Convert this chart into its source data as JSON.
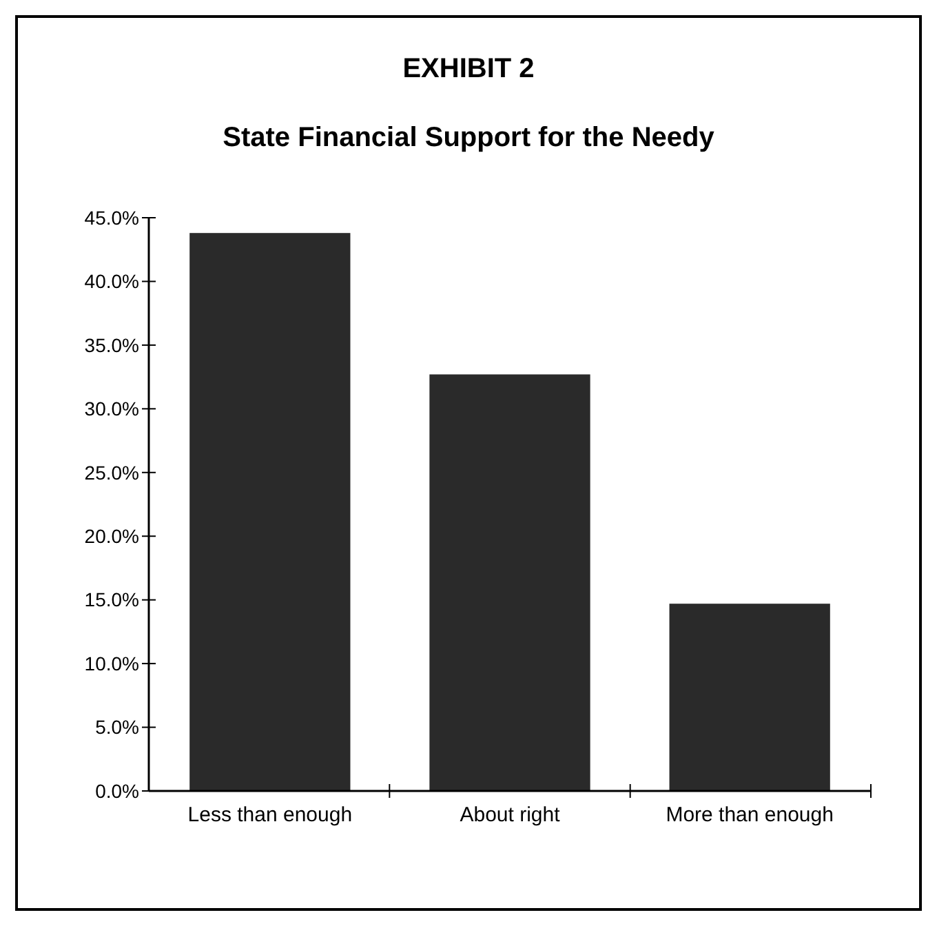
{
  "chart_data": {
    "type": "bar",
    "title": "EXHIBIT 2",
    "subtitle": "State Financial Support for the Needy",
    "categories": [
      "Less than enough",
      "About right",
      "More than enough"
    ],
    "values": [
      43.8,
      32.7,
      14.7
    ],
    "color": "#2a2a2a",
    "ylim": [
      0,
      45
    ],
    "yticks": [
      {
        "value": 0,
        "label": "0.0%"
      },
      {
        "value": 5,
        "label": "5.0%"
      },
      {
        "value": 10,
        "label": "10.0%"
      },
      {
        "value": 15,
        "label": "15.0%"
      },
      {
        "value": 20,
        "label": "20.0%"
      },
      {
        "value": 25,
        "label": "25.0%"
      },
      {
        "value": 30,
        "label": "30.0%"
      },
      {
        "value": 35,
        "label": "35.0%"
      },
      {
        "value": 40,
        "label": "40.0%"
      },
      {
        "value": 45,
        "label": "45.0%"
      }
    ],
    "grid": false
  }
}
